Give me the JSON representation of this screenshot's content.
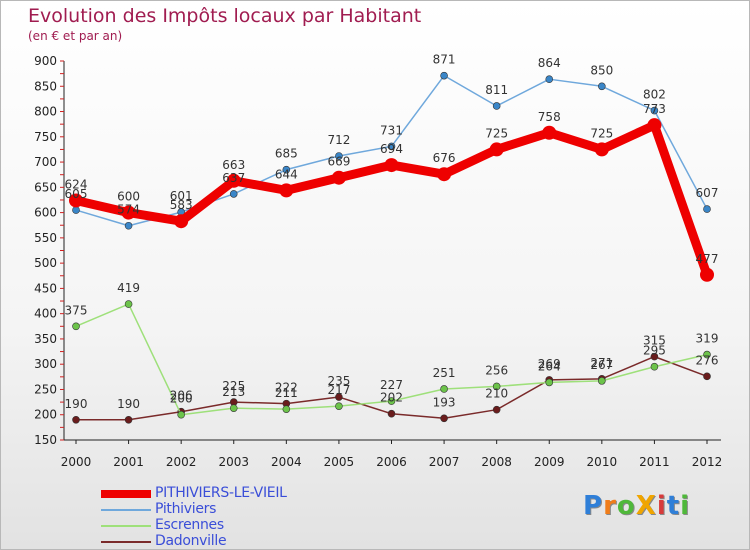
{
  "header": {
    "title": "Evolution des Impôts locaux par Habitant",
    "subtitle": "(en € et par an)"
  },
  "logo": {
    "text": "ProXiti",
    "letters": [
      {
        "ch": "P",
        "color": "#2f7fd8"
      },
      {
        "ch": "r",
        "color": "#f07d1a"
      },
      {
        "ch": "o",
        "color": "#4fb83a"
      },
      {
        "ch": "X",
        "color": "#f0a500"
      },
      {
        "ch": "i",
        "color": "#d83b3b"
      },
      {
        "ch": "t",
        "color": "#2f7fd8"
      },
      {
        "ch": "i",
        "color": "#4fb83a"
      }
    ]
  },
  "chart_data": {
    "type": "line",
    "title": "Evolution des Impôts locaux par Habitant",
    "subtitle": "(en € et par an)",
    "x": [
      "2000",
      "2001",
      "2002",
      "2003",
      "2004",
      "2005",
      "2006",
      "2007",
      "2008",
      "2009",
      "2010",
      "2011",
      "2012"
    ],
    "ylim": [
      150,
      900
    ],
    "yticks": [
      "150",
      "200",
      "250",
      "300",
      "350",
      "400",
      "450",
      "500",
      "550",
      "600",
      "650",
      "700",
      "750",
      "800",
      "850",
      "900"
    ],
    "grid": false,
    "legend_position": "bottom-left",
    "series": [
      {
        "name": "PITHIVIERS-LE-VIEIL",
        "color": "#ee0000",
        "emphasis": true,
        "values": [
          624,
          600,
          583,
          663,
          644,
          669,
          694,
          676,
          725,
          758,
          725,
          773,
          477
        ],
        "labels": [
          "624",
          "600",
          "583",
          "663",
          "644",
          "669",
          "694",
          "676",
          "725",
          "758",
          "725",
          "773",
          "477"
        ]
      },
      {
        "name": "Pithiviers",
        "color": "#6fa8dc",
        "marker_color": "#3a86c8",
        "values": [
          605,
          574,
          601,
          637,
          685,
          712,
          731,
          871,
          811,
          864,
          850,
          802,
          607
        ],
        "labels": [
          "605",
          "574",
          "601",
          "637",
          "685",
          "712",
          "731",
          "871",
          "811",
          "864",
          "850",
          "802",
          "607"
        ]
      },
      {
        "name": "Escrennes",
        "color": "#9ee07a",
        "marker_color": "#6cc34a",
        "values": [
          375,
          419,
          200,
          213,
          211,
          217,
          227,
          251,
          256,
          264,
          267,
          295,
          319
        ],
        "labels": [
          "375",
          "419",
          "200",
          "213",
          "211",
          "217",
          "227",
          "251",
          "256",
          "264",
          "267",
          "295",
          "319"
        ]
      },
      {
        "name": "Dadonville",
        "color": "#7a2a2a",
        "marker_color": "#6a1c1c",
        "values": [
          190,
          190,
          206,
          225,
          222,
          235,
          202,
          193,
          210,
          269,
          271,
          315,
          276
        ],
        "labels": [
          "190",
          "190",
          "206",
          "225",
          "222",
          "235",
          "202",
          "193",
          "210",
          "269",
          "271",
          "315",
          "276"
        ]
      }
    ]
  }
}
